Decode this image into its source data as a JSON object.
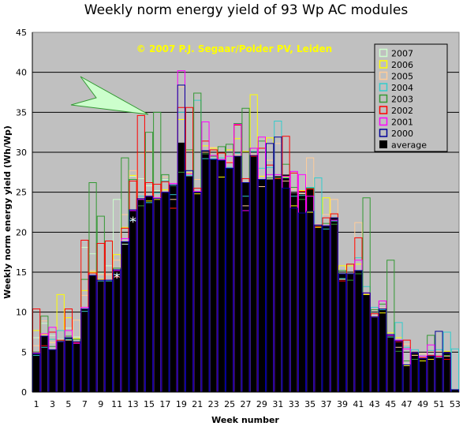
{
  "chart_data": {
    "type": "bar",
    "title": "Weekly norm energy yield of 93 Wp AC modules",
    "xlabel": "Week number",
    "ylabel": "Weekly norm energy yield (Wh/Wp)",
    "ylim": [
      0,
      45
    ],
    "y_ticks": [
      0,
      5,
      10,
      15,
      20,
      25,
      30,
      35,
      40,
      45
    ],
    "x_tick_labels": [
      "1",
      "3",
      "5",
      "7",
      "9",
      "11",
      "13",
      "15",
      "17",
      "19",
      "21",
      "23",
      "25",
      "27",
      "29",
      "31",
      "33",
      "35",
      "37",
      "39",
      "41",
      "43",
      "45",
      "47",
      "49",
      "51",
      "53"
    ],
    "copyright": "© 2007 P.J. Segaar/Polder PV, Leiden",
    "legend_position": "top-right",
    "annotations": [
      {
        "text": "*",
        "week": 11,
        "y": 14.5
      },
      {
        "text": "*",
        "week": 13,
        "y": 21.5
      }
    ],
    "categories": [
      1,
      2,
      3,
      4,
      5,
      6,
      7,
      8,
      9,
      10,
      11,
      12,
      13,
      14,
      15,
      16,
      17,
      18,
      19,
      20,
      21,
      22,
      23,
      24,
      25,
      26,
      27,
      28,
      29,
      30,
      31,
      32,
      33,
      34,
      35,
      36,
      37,
      38,
      39,
      40,
      41,
      42,
      43,
      44,
      45,
      46,
      47,
      48,
      49,
      50,
      51,
      52,
      53
    ],
    "average": [
      4.8,
      7.0,
      5.3,
      6.3,
      6.8,
      6.3,
      10.4,
      14.6,
      14.0,
      14.0,
      15.3,
      18.8,
      22.8,
      24.2,
      24.5,
      24.2,
      25.0,
      25.9,
      31.2,
      27.0,
      25.0,
      30.2,
      29.1,
      29.0,
      28.0,
      29.5,
      26.2,
      29.6,
      26.6,
      26.6,
      27.0,
      27.2,
      24.9,
      24.8,
      25.6,
      20.9,
      20.8,
      21.8,
      14.8,
      14.8,
      15.2,
      12.4,
      9.4,
      10.4,
      7.2,
      6.4,
      3.4,
      4.9,
      4.2,
      4.5,
      4.4,
      4.9,
      0.3
    ],
    "legend": [
      {
        "name": "2007",
        "color": "#ccffcc"
      },
      {
        "name": "2006",
        "color": "#ffff00"
      },
      {
        "name": "2005",
        "color": "#ffcc99"
      },
      {
        "name": "2004",
        "color": "#33cccc"
      },
      {
        "name": "2003",
        "color": "#339933"
      },
      {
        "name": "2002",
        "color": "#ff0000"
      },
      {
        "name": "2001",
        "color": "#ff00ff"
      },
      {
        "name": "2000",
        "color": "#000099"
      },
      {
        "name": "average",
        "color": "#000000"
      }
    ],
    "series": [
      {
        "name": "2007",
        "color": "#ccffcc",
        "values": [
          6.8,
          8.6,
          7.1,
          6.6,
          8.0,
          6.9,
          18.1,
          17.3,
          14.9,
          15.8,
          24.1,
          18.5,
          27.0,
          26.7,
          25.8,
          25.2,
          26.6,
          26.1,
          null,
          null,
          null,
          null,
          null,
          null,
          null,
          null,
          null,
          null,
          null,
          null,
          null,
          null,
          null,
          null,
          null,
          null,
          null,
          null,
          null,
          null,
          null,
          null,
          null,
          null,
          null,
          null,
          null,
          null,
          null,
          null,
          null,
          null,
          null
        ]
      },
      {
        "name": "2006",
        "color": "#ffff00",
        "values": [
          7.7,
          7.2,
          6.2,
          12.2,
          9.3,
          6.7,
          12.7,
          15.0,
          14.1,
          14.0,
          17.2,
          20.6,
          27.1,
          24.2,
          23.9,
          24.1,
          25.3,
          23.0,
          34.1,
          27.4,
          24.8,
          30.8,
          30.5,
          26.9,
          30.3,
          31.7,
          30.1,
          37.2,
          27.0,
          31.8,
          26.8,
          26.9,
          23.3,
          25.2,
          22.5,
          20.6,
          24.3,
          22.3,
          15.8,
          15.8,
          16.0,
          12.2,
          9.4,
          9.9,
          7.4,
          6.8,
          3.3,
          4.6,
          3.9,
          4.1,
          4.4,
          5.1,
          null
        ]
      },
      {
        "name": "2005",
        "color": "#ffcc99",
        "values": [
          5.8,
          8.9,
          6.2,
          7.7,
          6.5,
          9.0,
          12.1,
          15.2,
          14.7,
          14.7,
          16.5,
          22.2,
          27.7,
          29.9,
          30.1,
          24.2,
          26.9,
          24.1,
          38.2,
          30.2,
          26.6,
          30.0,
          30.6,
          29.1,
          28.8,
          29.6,
          23.3,
          29.7,
          25.7,
          29.0,
          31.1,
          26.4,
          25.4,
          24.8,
          29.3,
          21.0,
          22.2,
          24.1,
          14.1,
          16.0,
          21.2,
          12.3,
          10.3,
          10.5,
          6.9,
          5.6,
          6.0,
          4.6,
          4.8,
          5.1,
          5.1,
          4.5,
          null
        ]
      },
      {
        "name": "2004",
        "color": "#33cccc",
        "values": [
          4.6,
          5.6,
          6.6,
          7.7,
          6.6,
          6.2,
          10.1,
          14.6,
          13.9,
          13.9,
          14.7,
          18.8,
          21.5,
          24.5,
          23.7,
          24.9,
          26.4,
          24.7,
          35.0,
          27.1,
          36.5,
          29.2,
          29.2,
          29.3,
          28.1,
          29.9,
          24.5,
          30.1,
          28.0,
          28.1,
          33.9,
          26.8,
          24.5,
          24.6,
          25.6,
          26.8,
          20.4,
          21.4,
          14.2,
          16.0,
          16.8,
          13.2,
          10.6,
          10.3,
          6.9,
          8.7,
          5.6,
          5.3,
          4.5,
          5.2,
          5.3,
          7.5,
          5.4
        ]
      },
      {
        "name": "2003",
        "color": "#339933",
        "values": [
          5.0,
          9.5,
          5.7,
          6.4,
          7.0,
          6.6,
          14.1,
          26.2,
          22.0,
          18.9,
          15.5,
          29.3,
          26.6,
          23.3,
          32.5,
          35.0,
          27.2,
          25.8,
          27.5,
          30.3,
          37.4,
          29.8,
          29.5,
          30.7,
          31.0,
          33.6,
          35.5,
          30.5,
          31.4,
          26.8,
          26.8,
          28.5,
          25.6,
          24.1,
          25.5,
          20.8,
          21.1,
          21.0,
          15.2,
          14.0,
          14.8,
          24.3,
          10.3,
          11.0,
          16.5,
          5.1,
          3.9,
          4.1,
          4.3,
          7.1,
          4.3,
          4.6,
          null
        ]
      },
      {
        "name": "2002",
        "color": "#ff0000",
        "values": [
          10.4,
          5.8,
          7.5,
          6.5,
          10.4,
          6.2,
          19.0,
          14.9,
          18.6,
          18.9,
          14.4,
          20.5,
          26.4,
          34.6,
          26.2,
          26.0,
          26.3,
          23.0,
          35.6,
          35.6,
          25.5,
          31.4,
          30.3,
          29.9,
          28.7,
          33.4,
          26.7,
          29.5,
          30.5,
          28.4,
          26.7,
          32.0,
          27.4,
          25.1,
          25.4,
          20.7,
          21.8,
          22.3,
          13.9,
          16.0,
          19.3,
          12.4,
          9.8,
          11.4,
          7.1,
          6.3,
          6.5,
          4.9,
          4.3,
          4.6,
          4.5,
          4.1,
          null
        ]
      },
      {
        "name": "2001",
        "color": "#ff00ff",
        "values": [
          4.9,
          7.3,
          8.1,
          6.3,
          7.7,
          6.1,
          10.6,
          14.6,
          14.0,
          14.0,
          15.2,
          19.2,
          22.7,
          24.1,
          24.5,
          24.3,
          25.0,
          26.1,
          40.2,
          27.3,
          25.1,
          33.8,
          29.6,
          29.1,
          29.5,
          33.5,
          22.7,
          30.5,
          31.9,
          27.2,
          27.2,
          27.0,
          27.6,
          27.2,
          24.5,
          20.9,
          20.8,
          21.5,
          14.8,
          14.8,
          16.5,
          12.4,
          9.4,
          11.4,
          7.1,
          6.5,
          5.4,
          4.9,
          4.5,
          5.9,
          4.4,
          4.9,
          null
        ]
      },
      {
        "name": "2000",
        "color": "#000099",
        "values": [
          4.8,
          7.0,
          5.3,
          6.3,
          6.8,
          6.3,
          10.4,
          14.6,
          14.0,
          14.0,
          15.3,
          18.8,
          22.8,
          24.2,
          24.5,
          24.2,
          25.0,
          25.9,
          38.4,
          27.7,
          25.0,
          30.2,
          29.1,
          29.0,
          28.0,
          29.5,
          26.2,
          29.6,
          26.6,
          31.1,
          31.9,
          25.5,
          23.0,
          22.4,
          22.6,
          20.9,
          20.8,
          21.8,
          14.8,
          14.8,
          15.2,
          12.4,
          9.4,
          10.4,
          7.2,
          6.4,
          3.4,
          4.9,
          4.2,
          4.5,
          7.6,
          4.9,
          0.3
        ]
      }
    ]
  }
}
